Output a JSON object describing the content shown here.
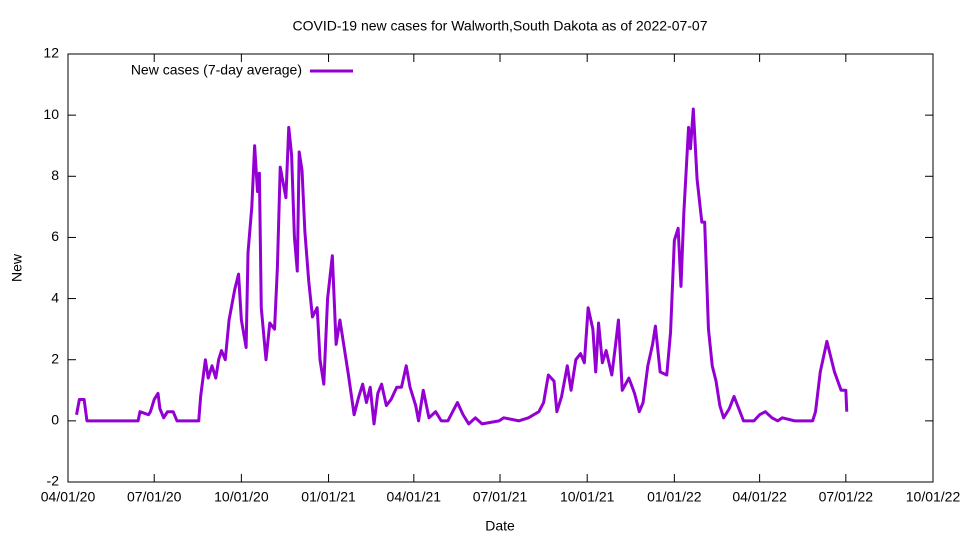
{
  "chart_data": {
    "type": "line",
    "title": "COVID-19 new cases for Walworth,South Dakota as of 2022-07-07",
    "x_label": "Date",
    "y_label": "New",
    "legend": "top-left",
    "xlim": [
      "2020-04-01",
      "2022-10-01"
    ],
    "xticks": [
      {
        "value": "2020-04-01",
        "label": "04/01/20"
      },
      {
        "value": "2020-07-01",
        "label": "07/01/20"
      },
      {
        "value": "2020-10-01",
        "label": "10/01/20"
      },
      {
        "value": "2021-01-01",
        "label": "01/01/21"
      },
      {
        "value": "2021-04-01",
        "label": "04/01/21"
      },
      {
        "value": "2021-07-01",
        "label": "07/01/21"
      },
      {
        "value": "2021-10-01",
        "label": "10/01/21"
      },
      {
        "value": "2022-01-01",
        "label": "01/01/22"
      },
      {
        "value": "2022-04-01",
        "label": "04/01/22"
      },
      {
        "value": "2022-07-01",
        "label": "07/01/22"
      },
      {
        "value": "2022-10-01",
        "label": "10/01/22"
      }
    ],
    "ylim": [
      -2,
      12
    ],
    "yticks": [
      -2,
      0,
      2,
      4,
      6,
      8,
      10,
      12
    ],
    "x": [
      "2020-04-10",
      "2020-04-13",
      "2020-04-18",
      "2020-04-21",
      "2020-06-14",
      "2020-06-16",
      "2020-06-25",
      "2020-06-27",
      "2020-07-01",
      "2020-07-05",
      "2020-07-07",
      "2020-07-11",
      "2020-07-15",
      "2020-07-21",
      "2020-07-25",
      "2020-08-17",
      "2020-08-19",
      "2020-08-24",
      "2020-08-27",
      "2020-08-31",
      "2020-09-04",
      "2020-09-07",
      "2020-09-10",
      "2020-09-14",
      "2020-09-18",
      "2020-09-24",
      "2020-09-28",
      "2020-10-01",
      "2020-10-06",
      "2020-10-08",
      "2020-10-12",
      "2020-10-15",
      "2020-10-18",
      "2020-10-20",
      "2020-10-22",
      "2020-10-27",
      "2020-10-31",
      "2020-11-05",
      "2020-11-08",
      "2020-11-11",
      "2020-11-14",
      "2020-11-17",
      "2020-11-20",
      "2020-11-23",
      "2020-11-26",
      "2020-11-29",
      "2020-12-01",
      "2020-12-04",
      "2020-12-07",
      "2020-12-11",
      "2020-12-15",
      "2020-12-20",
      "2020-12-23",
      "2020-12-27",
      "2020-12-31",
      "2021-01-05",
      "2021-01-09",
      "2021-01-13",
      "2021-01-17",
      "2021-01-22",
      "2021-01-28",
      "2021-02-02",
      "2021-02-06",
      "2021-02-10",
      "2021-02-14",
      "2021-02-18",
      "2021-02-22",
      "2021-02-26",
      "2021-03-03",
      "2021-03-08",
      "2021-03-14",
      "2021-03-19",
      "2021-03-24",
      "2021-03-28",
      "2021-04-03",
      "2021-04-06",
      "2021-04-11",
      "2021-04-17",
      "2021-04-24",
      "2021-04-30",
      "2021-05-07",
      "2021-05-12",
      "2021-05-17",
      "2021-05-23",
      "2021-05-29",
      "2021-06-05",
      "2021-06-12",
      "2021-06-30",
      "2021-07-05",
      "2021-07-21",
      "2021-07-31",
      "2021-08-11",
      "2021-08-16",
      "2021-08-21",
      "2021-08-27",
      "2021-08-30",
      "2021-09-04",
      "2021-09-10",
      "2021-09-14",
      "2021-09-19",
      "2021-09-24",
      "2021-09-28",
      "2021-10-02",
      "2021-10-07",
      "2021-10-10",
      "2021-10-13",
      "2021-10-17",
      "2021-10-21",
      "2021-10-27",
      "2021-10-31",
      "2021-11-03",
      "2021-11-07",
      "2021-11-14",
      "2021-11-20",
      "2021-11-25",
      "2021-11-29",
      "2021-12-04",
      "2021-12-09",
      "2021-12-12",
      "2021-12-17",
      "2021-12-24",
      "2021-12-28",
      "2022-01-01",
      "2022-01-05",
      "2022-01-08",
      "2022-01-11",
      "2022-01-16",
      "2022-01-18",
      "2022-01-21",
      "2022-01-25",
      "2022-01-30",
      "2022-02-02",
      "2022-02-06",
      "2022-02-10",
      "2022-02-14",
      "2022-02-18",
      "2022-02-22",
      "2022-02-28",
      "2022-03-05",
      "2022-03-10",
      "2022-03-15",
      "2022-03-26",
      "2022-04-01",
      "2022-04-07",
      "2022-04-14",
      "2022-04-20",
      "2022-04-25",
      "2022-05-08",
      "2022-05-27",
      "2022-05-30",
      "2022-06-04",
      "2022-06-11",
      "2022-06-19",
      "2022-06-26",
      "2022-07-01",
      "2022-07-02"
    ],
    "series": [
      {
        "name": "New cases (7-day average)",
        "color": "#9400d3",
        "values": [
          0.2,
          0.7,
          0.7,
          0,
          0,
          0.3,
          0.2,
          0.3,
          0.7,
          0.9,
          0.4,
          0.1,
          0.3,
          0.3,
          0,
          0,
          0.8,
          2.0,
          1.4,
          1.8,
          1.4,
          2.0,
          2.3,
          2.0,
          3.3,
          4.3,
          4.8,
          3.3,
          2.4,
          5.5,
          7.0,
          9.0,
          7.5,
          8.1,
          3.7,
          2.0,
          3.2,
          3.0,
          5.0,
          8.3,
          7.8,
          7.3,
          9.6,
          8.7,
          6.0,
          4.9,
          8.8,
          8.2,
          6.2,
          4.6,
          3.4,
          3.7,
          2.0,
          1.2,
          4.0,
          5.4,
          2.5,
          3.3,
          2.5,
          1.5,
          0.2,
          0.8,
          1.2,
          0.6,
          1.1,
          -0.1,
          0.9,
          1.2,
          0.5,
          0.7,
          1.1,
          1.1,
          1.8,
          1.1,
          0.5,
          0.0,
          1.0,
          0.1,
          0.3,
          0.0,
          0.0,
          0.3,
          0.6,
          0.2,
          -0.1,
          0.1,
          -0.1,
          0.0,
          0.1,
          0.0,
          0.1,
          0.3,
          0.6,
          1.5,
          1.3,
          0.3,
          0.8,
          1.8,
          1.0,
          2.0,
          2.2,
          1.9,
          3.7,
          3.0,
          1.6,
          3.2,
          1.9,
          2.3,
          1.5,
          2.5,
          3.3,
          1.0,
          1.4,
          0.9,
          0.3,
          0.6,
          1.8,
          2.5,
          3.1,
          1.6,
          1.5,
          2.9,
          5.9,
          6.3,
          4.4,
          6.8,
          9.6,
          8.9,
          10.2,
          7.9,
          6.5,
          6.5,
          3.0,
          1.8,
          1.3,
          0.5,
          0.1,
          0.4,
          0.8,
          0.4,
          0.0,
          0.0,
          0.2,
          0.3,
          0.1,
          0.0,
          0.1,
          0.0,
          0.0,
          0.3,
          1.6,
          2.6,
          1.6,
          1.0,
          1.0,
          0.3
        ]
      }
    ]
  }
}
